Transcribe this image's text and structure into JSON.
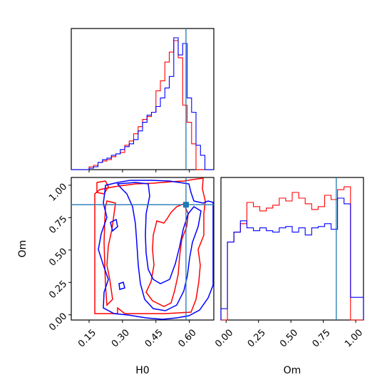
{
  "chart_data": {
    "type": "corner",
    "parameters": [
      "H0",
      "Om"
    ],
    "colors": {
      "run_a": "#ff0000",
      "run_b": "#0000ff",
      "truth": "#1f77b4"
    },
    "truth": {
      "H0": 0.585,
      "Om": 0.85
    },
    "axes": {
      "H0": {
        "range": [
          0.07,
          0.71
        ],
        "ticks": [
          0.15,
          0.3,
          0.45,
          0.6
        ],
        "tick_labels": [
          "0.15",
          "0.30",
          "0.45",
          "0.60"
        ],
        "xlabel": "H0"
      },
      "Om": {
        "range": [
          -0.04,
          1.06
        ],
        "ticks": [
          0.0,
          0.25,
          0.5,
          0.75,
          1.0
        ],
        "tick_labels": [
          "0.00",
          "0.25",
          "0.50",
          "0.75",
          "1.00"
        ],
        "xlabel": "Om",
        "ylabel": "Om"
      }
    },
    "hist_H0": {
      "bins": [
        0.07,
        0.09,
        0.11,
        0.13,
        0.15,
        0.17,
        0.19,
        0.21,
        0.23,
        0.25,
        0.27,
        0.29,
        0.31,
        0.33,
        0.35,
        0.37,
        0.39,
        0.41,
        0.43,
        0.45,
        0.47,
        0.49,
        0.51,
        0.53,
        0.55,
        0.57,
        0.59,
        0.61,
        0.63,
        0.65,
        0.67,
        0.69,
        0.71
      ],
      "series": [
        {
          "color": "red",
          "counts": [
            0,
            0,
            0,
            0,
            2,
            3,
            5,
            6,
            7,
            9,
            11,
            12,
            17,
            20,
            25,
            30,
            35,
            37,
            40,
            55,
            62,
            75,
            82,
            90,
            78,
            45,
            33,
            18,
            0,
            0,
            0,
            0
          ]
        },
        {
          "color": "blue",
          "counts": [
            0,
            0,
            0,
            0,
            1,
            2,
            5,
            7,
            8,
            10,
            11,
            14,
            16,
            18,
            21,
            27,
            33,
            38,
            40,
            44,
            50,
            57,
            65,
            92,
            80,
            88,
            50,
            40,
            17,
            10,
            0,
            0
          ]
        }
      ]
    },
    "hist_Om": {
      "bins": [
        -0.04,
        0.01,
        0.06,
        0.11,
        0.16,
        0.21,
        0.26,
        0.31,
        0.36,
        0.41,
        0.46,
        0.51,
        0.56,
        0.61,
        0.66,
        0.71,
        0.76,
        0.81,
        0.86,
        0.91,
        0.96,
        1.01,
        1.06
      ],
      "series": [
        {
          "color": "red",
          "counts": [
            0,
            55,
            62,
            68,
            83,
            80,
            77,
            79,
            81,
            86,
            84,
            90,
            86,
            82,
            78,
            80,
            88,
            85,
            92,
            94,
            0,
            0
          ]
        },
        {
          "color": "blue",
          "counts": [
            8,
            55,
            62,
            70,
            65,
            63,
            65,
            63,
            62,
            65,
            66,
            62,
            65,
            60,
            65,
            66,
            68,
            64,
            86,
            82,
            16,
            16
          ]
        }
      ]
    }
  }
}
